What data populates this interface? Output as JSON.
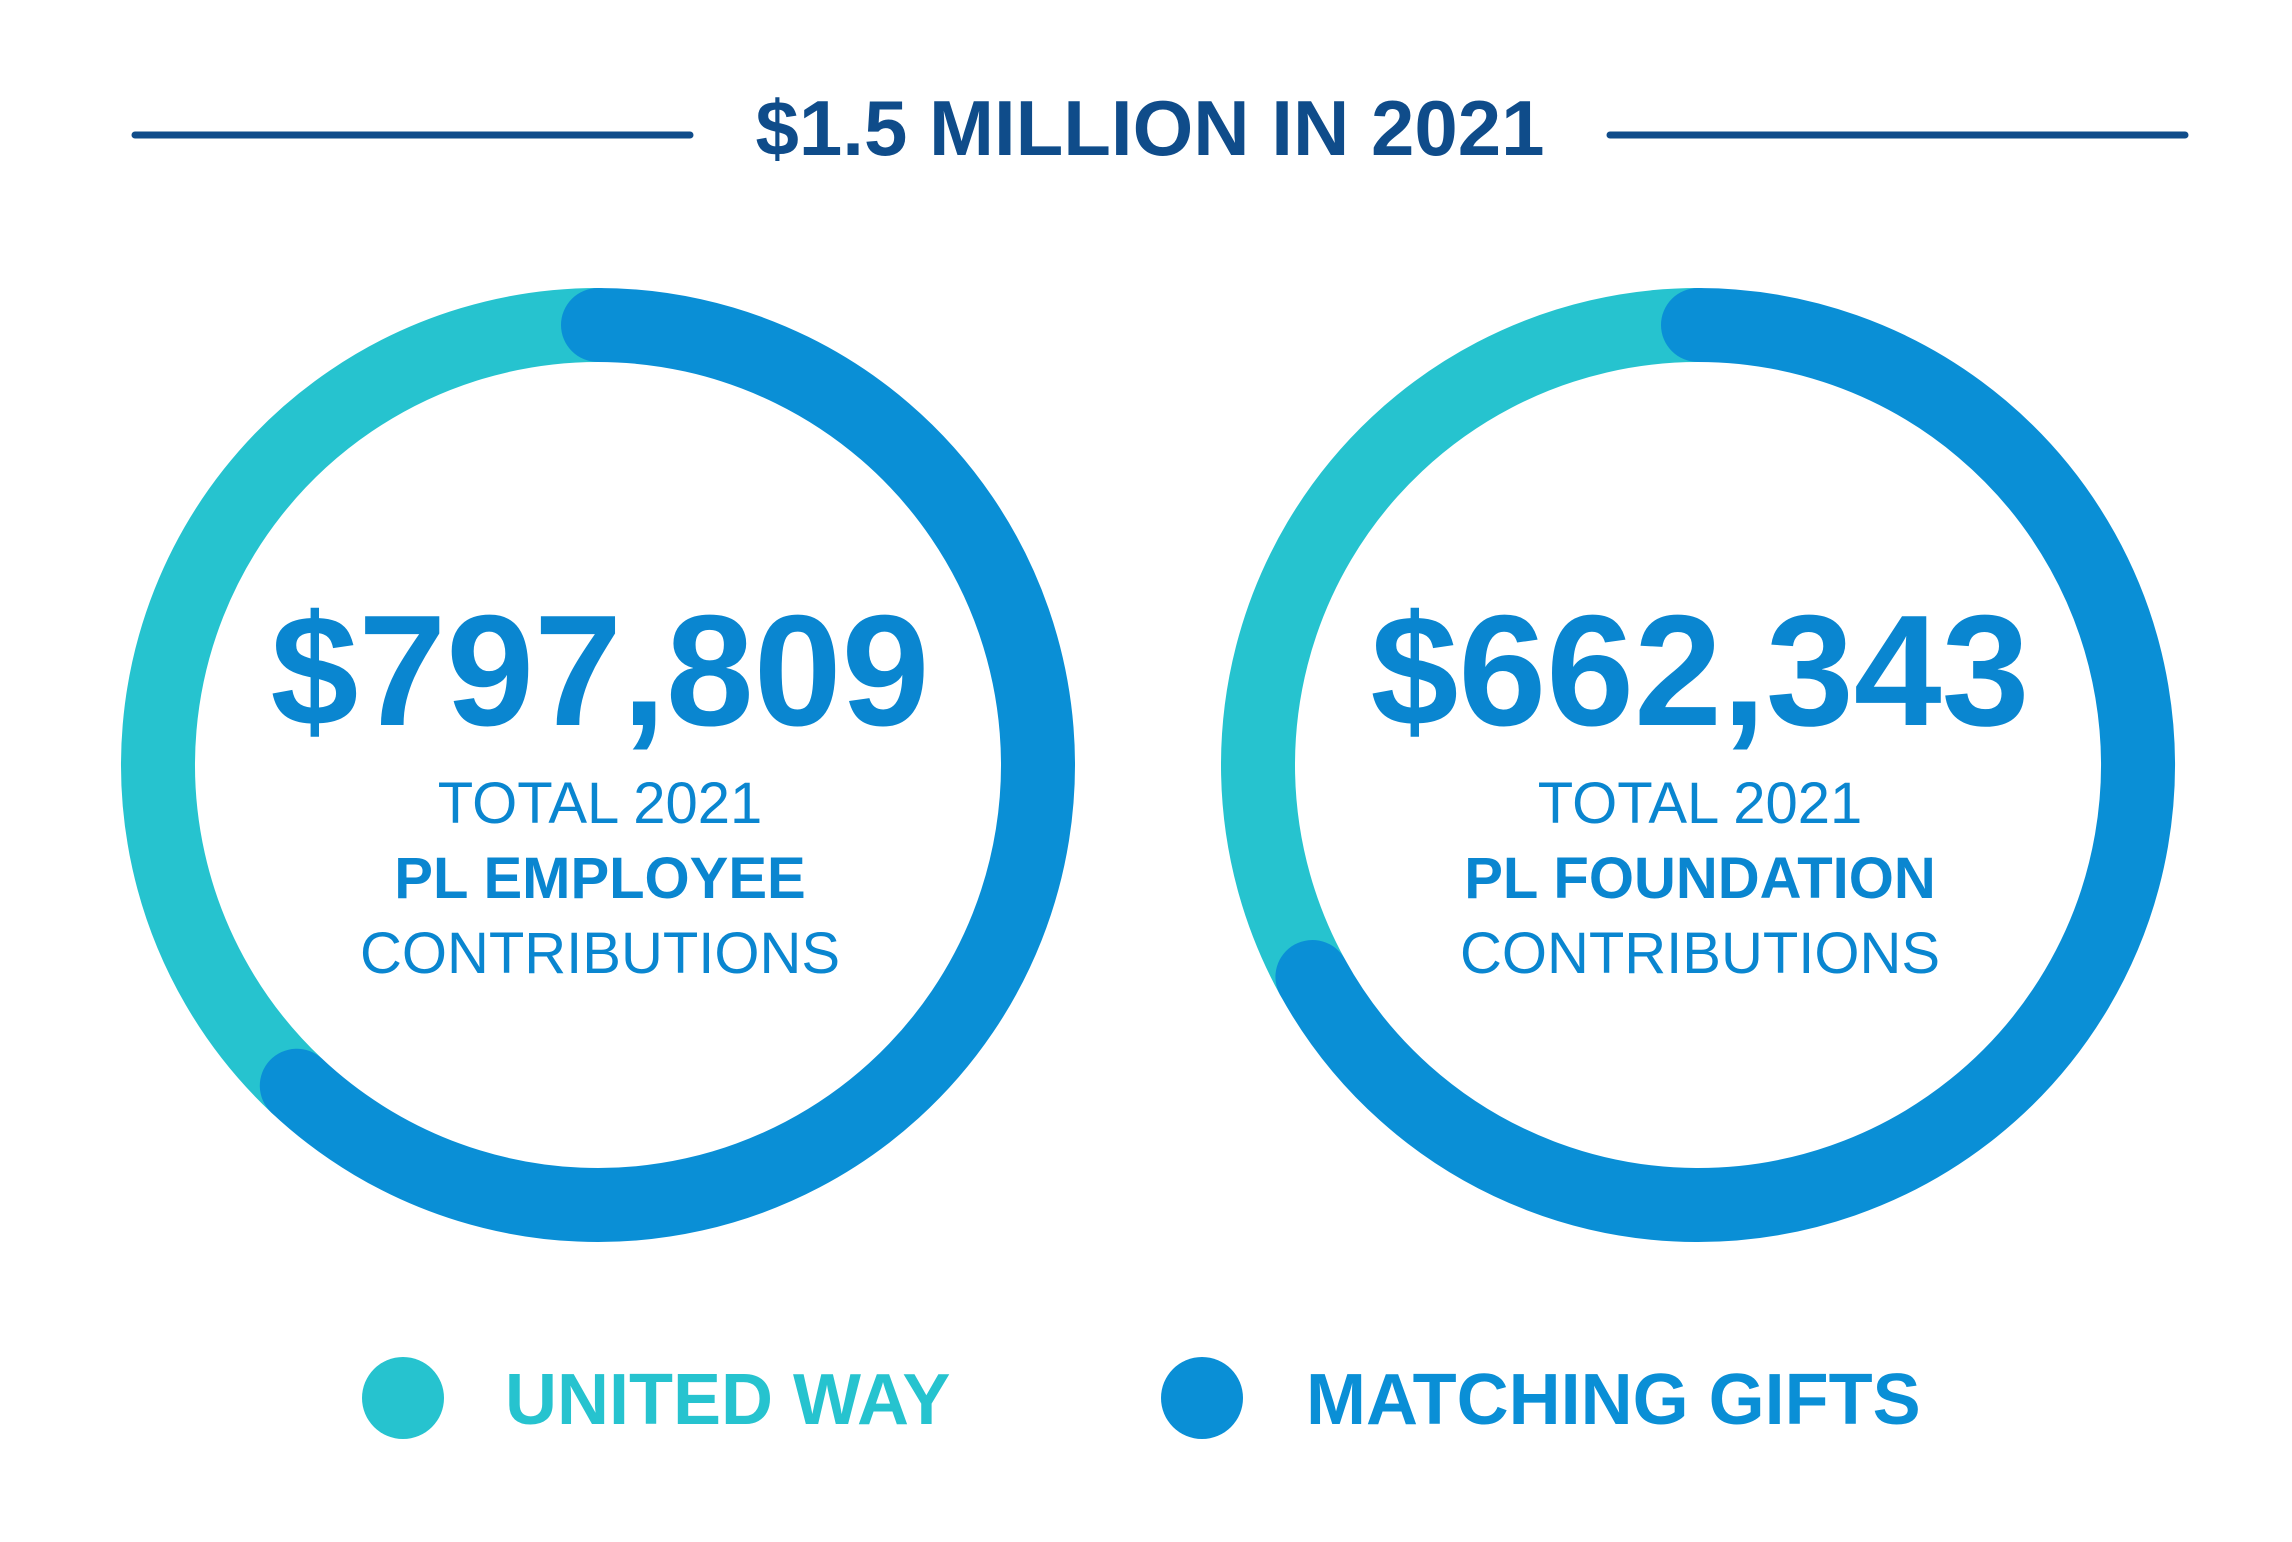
{
  "header": {
    "title": "$1.5 MILLION IN 2021"
  },
  "colors": {
    "navy": "#0f4c8a",
    "united_way": "#26c3cf",
    "matching_gifts": "#0a8fd6",
    "text_blue": "#0a86d0"
  },
  "chart_data": [
    {
      "type": "pie",
      "variant": "donut",
      "title": "",
      "center_value": "$797,809",
      "center_lines": [
        "TOTAL 2021",
        "PL EMPLOYEE",
        "CONTRIBUTIONS"
      ],
      "slices": [
        {
          "name": "UNITED WAY",
          "fraction": 0.38
        },
        {
          "name": "MATCHING GIFTS",
          "fraction": 0.62
        }
      ]
    },
    {
      "type": "pie",
      "variant": "donut",
      "title": "",
      "center_value": "$662,343",
      "center_lines": [
        "TOTAL 2021",
        "PL FOUNDATION",
        "CONTRIBUTIONS"
      ],
      "slices": [
        {
          "name": "UNITED WAY",
          "fraction": 0.33
        },
        {
          "name": "MATCHING GIFTS",
          "fraction": 0.67
        }
      ]
    }
  ],
  "legend": {
    "placement": "bottom",
    "items": [
      {
        "label": "UNITED WAY",
        "color": "#26c3cf"
      },
      {
        "label": "MATCHING GIFTS",
        "color": "#0a8fd6"
      }
    ]
  }
}
